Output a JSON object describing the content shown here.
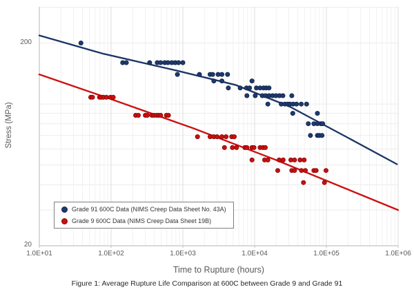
{
  "figure_caption": "Figure 1: Average Rupture Life Comparison at 600C between Grade 9 and Grade 91",
  "chart_data": {
    "type": "scatter",
    "title": "",
    "xlabel": "Time to Rupture (hours)",
    "ylabel": "Stress (MPa)",
    "x_scale": "log",
    "y_scale": "log",
    "xlim": [
      10,
      1000000
    ],
    "ylim": [
      20,
      300
    ],
    "x_tick_labels": [
      "1.0E+01",
      "1.0E+02",
      "1.0E+03",
      "1.0E+04",
      "1.0E+05",
      "1.0E+06"
    ],
    "y_tick_labels": [
      "200",
      "20"
    ],
    "y_tick_values": [
      200,
      20
    ],
    "grid": true,
    "legend_position": "lower-left",
    "series": [
      {
        "name": "Grade 91 600C Data (NIMS Creep Data Sheet No. 43A)",
        "color": "#1e3a6e",
        "marker_stroke": "#0e2246",
        "line_color": "#1c3667",
        "points": [
          [
            38,
            200
          ],
          [
            145,
            160
          ],
          [
            163,
            160
          ],
          [
            345,
            160
          ],
          [
            440,
            160
          ],
          [
            490,
            160
          ],
          [
            560,
            160
          ],
          [
            620,
            160
          ],
          [
            700,
            160
          ],
          [
            780,
            160
          ],
          [
            870,
            160
          ],
          [
            1000,
            160
          ],
          [
            840,
            140
          ],
          [
            1700,
            140
          ],
          [
            2400,
            140
          ],
          [
            2600,
            140
          ],
          [
            3100,
            140
          ],
          [
            3500,
            140
          ],
          [
            4200,
            140
          ],
          [
            2700,
            130
          ],
          [
            3500,
            130
          ],
          [
            9200,
            130
          ],
          [
            4300,
            120
          ],
          [
            6300,
            120
          ],
          [
            7700,
            120
          ],
          [
            8500,
            120
          ],
          [
            10600,
            120
          ],
          [
            11900,
            120
          ],
          [
            13300,
            120
          ],
          [
            14500,
            120
          ],
          [
            15900,
            120
          ],
          [
            7800,
            110
          ],
          [
            10200,
            110
          ],
          [
            12800,
            110
          ],
          [
            14200,
            110
          ],
          [
            15900,
            110
          ],
          [
            17800,
            110
          ],
          [
            19800,
            110
          ],
          [
            22200,
            110
          ],
          [
            24800,
            110
          ],
          [
            33000,
            110
          ],
          [
            15300,
            100
          ],
          [
            23500,
            100
          ],
          [
            26300,
            100
          ],
          [
            28800,
            100
          ],
          [
            31000,
            100
          ],
          [
            34400,
            100
          ],
          [
            38300,
            100
          ],
          [
            44700,
            100
          ],
          [
            53000,
            100
          ],
          [
            34000,
            90
          ],
          [
            75000,
            90
          ],
          [
            56000,
            80
          ],
          [
            67000,
            80
          ],
          [
            75000,
            80
          ],
          [
            84000,
            80
          ],
          [
            89000,
            80
          ],
          [
            60000,
            70
          ],
          [
            75000,
            70
          ],
          [
            80000,
            70
          ],
          [
            87000,
            70
          ]
        ],
        "trend_line": [
          [
            10,
            218
          ],
          [
            78,
            177
          ],
          [
            840,
            146
          ],
          [
            5500,
            124
          ],
          [
            31000,
            97
          ],
          [
            203000,
            68
          ],
          [
            960000,
            50.5
          ]
        ]
      },
      {
        "name": "Grade 9 600C Data (NIMS Creep Data Sheet 19B)",
        "color": "#c81010",
        "marker_stroke": "#8a0505",
        "line_color": "#cc1111",
        "points": [
          [
            52,
            108
          ],
          [
            55,
            108
          ],
          [
            69,
            108
          ],
          [
            73,
            108
          ],
          [
            78,
            108
          ],
          [
            86,
            108
          ],
          [
            98,
            108
          ],
          [
            107,
            108
          ],
          [
            220,
            88
          ],
          [
            240,
            88
          ],
          [
            300,
            88
          ],
          [
            320,
            88
          ],
          [
            370,
            88
          ],
          [
            395,
            88
          ],
          [
            430,
            88
          ],
          [
            460,
            88
          ],
          [
            490,
            88
          ],
          [
            590,
            88
          ],
          [
            630,
            88
          ],
          [
            1600,
            69
          ],
          [
            2400,
            69
          ],
          [
            2700,
            69
          ],
          [
            3000,
            69
          ],
          [
            3500,
            69
          ],
          [
            4000,
            69
          ],
          [
            4800,
            69
          ],
          [
            5200,
            69
          ],
          [
            3800,
            61
          ],
          [
            4900,
            61
          ],
          [
            5600,
            61
          ],
          [
            7300,
            61
          ],
          [
            7800,
            61
          ],
          [
            9200,
            61
          ],
          [
            9800,
            61
          ],
          [
            11900,
            61
          ],
          [
            13100,
            61
          ],
          [
            14100,
            61
          ],
          [
            9200,
            53
          ],
          [
            13800,
            53
          ],
          [
            15300,
            53
          ],
          [
            22000,
            53
          ],
          [
            25000,
            53
          ],
          [
            32000,
            53
          ],
          [
            36000,
            53
          ],
          [
            43000,
            53
          ],
          [
            49000,
            53
          ],
          [
            21000,
            47
          ],
          [
            33000,
            47
          ],
          [
            36000,
            47
          ],
          [
            45000,
            47
          ],
          [
            51000,
            47
          ],
          [
            67000,
            47
          ],
          [
            72000,
            47
          ],
          [
            99000,
            47
          ],
          [
            48000,
            41
          ],
          [
            94000,
            41
          ]
        ],
        "trend_line": [
          [
            10,
            140
          ],
          [
            98,
            106
          ],
          [
            1390,
            76
          ],
          [
            19800,
            53
          ],
          [
            1000000,
            30
          ]
        ]
      }
    ]
  }
}
